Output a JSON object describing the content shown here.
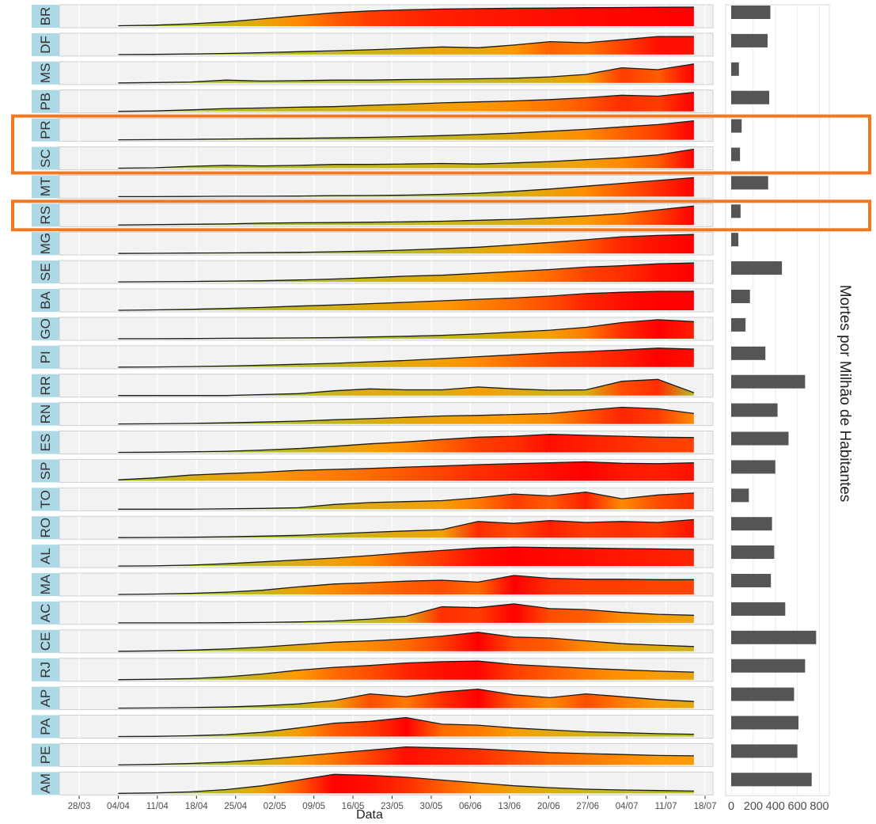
{
  "chart_data": [
    {
      "type": "area",
      "xlabel": "Data",
      "ylabel": "",
      "x_ticks": [
        "28/03",
        "04/04",
        "11/04",
        "18/04",
        "25/04",
        "02/05",
        "09/05",
        "16/05",
        "23/05",
        "30/05",
        "06/06",
        "13/06",
        "20/06",
        "27/06",
        "04/07",
        "11/07",
        "18/07"
      ],
      "x_range": [
        "28/03",
        "18/07"
      ],
      "grid": true,
      "legend": "none",
      "fill_color_scale": [
        "#9acd32",
        "#ff0000"
      ],
      "panel_label_color": "#add8e6",
      "series": [
        {
          "name": "BR",
          "start": "04/04",
          "end": "16/07",
          "values": [
            0.02,
            0.05,
            0.12,
            0.22,
            0.38,
            0.55,
            0.7,
            0.8,
            0.86,
            0.9,
            0.92,
            0.94,
            0.95,
            0.97,
            0.98,
            0.99,
            1.0
          ]
        },
        {
          "name": "DF",
          "start": "04/04",
          "end": "16/07",
          "values": [
            0.0,
            0.01,
            0.03,
            0.06,
            0.1,
            0.15,
            0.2,
            0.25,
            0.32,
            0.4,
            0.36,
            0.5,
            0.68,
            0.62,
            0.78,
            0.95,
            0.95
          ]
        },
        {
          "name": "MS",
          "start": "04/04",
          "end": "16/07",
          "values": [
            0.0,
            0.02,
            0.05,
            0.15,
            0.1,
            0.12,
            0.15,
            0.15,
            0.18,
            0.2,
            0.22,
            0.25,
            0.32,
            0.45,
            0.8,
            0.7,
            1.0
          ]
        },
        {
          "name": "PB",
          "start": "04/04",
          "end": "16/07",
          "values": [
            0.0,
            0.02,
            0.08,
            0.15,
            0.18,
            0.22,
            0.25,
            0.32,
            0.38,
            0.45,
            0.5,
            0.55,
            0.62,
            0.72,
            0.85,
            0.8,
            1.0
          ]
        },
        {
          "name": "PR",
          "start": "04/04",
          "end": "16/07",
          "values": [
            0.0,
            0.01,
            0.02,
            0.04,
            0.06,
            0.08,
            0.1,
            0.13,
            0.17,
            0.22,
            0.28,
            0.35,
            0.45,
            0.55,
            0.68,
            0.8,
            1.0
          ]
        },
        {
          "name": "SC",
          "start": "04/04",
          "end": "16/07",
          "values": [
            0.0,
            0.02,
            0.1,
            0.15,
            0.12,
            0.15,
            0.2,
            0.2,
            0.22,
            0.25,
            0.22,
            0.28,
            0.35,
            0.45,
            0.55,
            0.7,
            1.0
          ]
        },
        {
          "name": "MT",
          "start": "04/04",
          "end": "16/07",
          "values": [
            0.0,
            0.0,
            0.01,
            0.02,
            0.02,
            0.03,
            0.05,
            0.06,
            0.08,
            0.12,
            0.18,
            0.28,
            0.4,
            0.55,
            0.7,
            0.85,
            1.0
          ]
        },
        {
          "name": "RS",
          "start": "04/04",
          "end": "16/07",
          "values": [
            0.0,
            0.02,
            0.04,
            0.06,
            0.1,
            0.12,
            0.13,
            0.15,
            0.17,
            0.2,
            0.25,
            0.3,
            0.38,
            0.48,
            0.6,
            0.8,
            1.0
          ]
        },
        {
          "name": "MG",
          "start": "04/04",
          "end": "16/07",
          "values": [
            0.0,
            0.01,
            0.02,
            0.03,
            0.04,
            0.06,
            0.09,
            0.13,
            0.18,
            0.25,
            0.33,
            0.45,
            0.58,
            0.72,
            0.88,
            0.95,
            1.0
          ]
        },
        {
          "name": "SE",
          "start": "04/04",
          "end": "16/07",
          "values": [
            0.0,
            0.01,
            0.02,
            0.04,
            0.06,
            0.1,
            0.15,
            0.22,
            0.3,
            0.35,
            0.45,
            0.55,
            0.65,
            0.78,
            0.85,
            0.95,
            1.0
          ]
        },
        {
          "name": "BA",
          "start": "04/04",
          "end": "16/07",
          "values": [
            0.0,
            0.02,
            0.05,
            0.1,
            0.15,
            0.22,
            0.28,
            0.35,
            0.42,
            0.5,
            0.58,
            0.65,
            0.75,
            0.88,
            0.95,
            1.0,
            1.0
          ]
        },
        {
          "name": "GO",
          "start": "04/04",
          "end": "16/07",
          "values": [
            0.0,
            0.0,
            0.01,
            0.02,
            0.03,
            0.04,
            0.06,
            0.09,
            0.13,
            0.18,
            0.25,
            0.35,
            0.45,
            0.6,
            0.85,
            1.0,
            0.9
          ]
        },
        {
          "name": "PI",
          "start": "04/04",
          "end": "16/07",
          "values": [
            0.0,
            0.01,
            0.03,
            0.06,
            0.1,
            0.15,
            0.2,
            0.28,
            0.35,
            0.45,
            0.55,
            0.65,
            0.75,
            0.82,
            0.9,
            1.0,
            0.95
          ]
        },
        {
          "name": "RR",
          "start": "04/04",
          "end": "16/07",
          "values": [
            0.0,
            0.0,
            0.0,
            0.0,
            0.05,
            0.1,
            0.25,
            0.35,
            0.3,
            0.3,
            0.45,
            0.35,
            0.28,
            0.3,
            0.75,
            0.85,
            0.15
          ]
        },
        {
          "name": "RN",
          "start": "04/04",
          "end": "16/07",
          "values": [
            0.0,
            0.01,
            0.03,
            0.06,
            0.1,
            0.15,
            0.22,
            0.28,
            0.35,
            0.42,
            0.45,
            0.5,
            0.55,
            0.72,
            0.88,
            0.8,
            0.55
          ]
        },
        {
          "name": "ES",
          "start": "04/04",
          "end": "16/07",
          "values": [
            0.0,
            0.01,
            0.03,
            0.06,
            0.12,
            0.2,
            0.32,
            0.45,
            0.55,
            0.68,
            0.8,
            0.85,
            0.95,
            0.9,
            0.85,
            0.8,
            0.78
          ]
        },
        {
          "name": "SP",
          "start": "04/04",
          "end": "16/07",
          "values": [
            0.05,
            0.15,
            0.3,
            0.38,
            0.45,
            0.55,
            0.6,
            0.65,
            0.72,
            0.78,
            0.85,
            0.9,
            0.95,
            1.0,
            0.92,
            0.9,
            0.95
          ]
        },
        {
          "name": "TO",
          "start": "04/04",
          "end": "16/07",
          "values": [
            0.0,
            0.0,
            0.0,
            0.02,
            0.04,
            0.08,
            0.25,
            0.35,
            0.4,
            0.45,
            0.6,
            0.8,
            0.7,
            0.9,
            0.55,
            0.75,
            0.85
          ]
        },
        {
          "name": "RO",
          "start": "04/04",
          "end": "16/07",
          "values": [
            0.0,
            0.01,
            0.02,
            0.04,
            0.08,
            0.12,
            0.2,
            0.28,
            0.35,
            0.42,
            0.85,
            0.75,
            0.9,
            0.8,
            0.85,
            0.8,
            0.95
          ]
        },
        {
          "name": "AL",
          "start": "04/04",
          "end": "16/07",
          "values": [
            0.0,
            0.01,
            0.05,
            0.12,
            0.22,
            0.32,
            0.42,
            0.55,
            0.7,
            0.82,
            0.95,
            1.0,
            0.97,
            0.95,
            0.92,
            0.9,
            0.88
          ]
        },
        {
          "name": "MA",
          "start": "04/04",
          "end": "16/07",
          "values": [
            0.0,
            0.02,
            0.06,
            0.12,
            0.22,
            0.4,
            0.55,
            0.62,
            0.7,
            0.75,
            0.65,
            1.0,
            0.85,
            0.8,
            0.8,
            0.78,
            0.78
          ]
        },
        {
          "name": "AC",
          "start": "04/04",
          "end": "16/07",
          "values": [
            0.0,
            0.0,
            0.0,
            0.01,
            0.02,
            0.05,
            0.1,
            0.2,
            0.35,
            0.85,
            0.8,
            1.0,
            0.75,
            0.7,
            0.55,
            0.45,
            0.4
          ]
        },
        {
          "name": "CE",
          "start": "04/04",
          "end": "16/07",
          "values": [
            0.0,
            0.02,
            0.06,
            0.12,
            0.22,
            0.35,
            0.48,
            0.55,
            0.65,
            0.8,
            1.0,
            0.75,
            0.7,
            0.55,
            0.4,
            0.32,
            0.25
          ]
        },
        {
          "name": "RJ",
          "start": "04/04",
          "end": "16/07",
          "values": [
            0.0,
            0.02,
            0.06,
            0.15,
            0.3,
            0.5,
            0.65,
            0.75,
            0.88,
            0.95,
            0.98,
            0.8,
            0.7,
            0.6,
            0.52,
            0.45,
            0.4
          ]
        },
        {
          "name": "AP",
          "start": "04/04",
          "end": "16/07",
          "values": [
            0.0,
            0.01,
            0.03,
            0.06,
            0.12,
            0.22,
            0.4,
            0.75,
            0.6,
            0.85,
            1.0,
            0.7,
            0.55,
            0.75,
            0.6,
            0.45,
            0.35
          ]
        },
        {
          "name": "PA",
          "start": "04/04",
          "end": "16/07",
          "values": [
            0.0,
            0.01,
            0.04,
            0.1,
            0.22,
            0.45,
            0.7,
            0.8,
            1.0,
            0.65,
            0.6,
            0.45,
            0.35,
            0.25,
            0.2,
            0.15,
            0.12
          ]
        },
        {
          "name": "PE",
          "start": "04/04",
          "end": "16/07",
          "values": [
            0.0,
            0.03,
            0.08,
            0.15,
            0.28,
            0.45,
            0.62,
            0.78,
            0.95,
            0.9,
            0.85,
            0.75,
            0.65,
            0.6,
            0.55,
            0.5,
            0.48
          ]
        },
        {
          "name": "AM",
          "start": "04/04",
          "end": "16/07",
          "values": [
            0.0,
            0.02,
            0.08,
            0.2,
            0.4,
            0.7,
            1.0,
            0.95,
            0.85,
            0.7,
            0.55,
            0.4,
            0.3,
            0.22,
            0.18,
            0.15,
            0.12
          ]
        }
      ],
      "highlighted_groups": [
        [
          "PR",
          "SC"
        ],
        [
          "RS"
        ]
      ],
      "highlight_color": "#f07820"
    },
    {
      "type": "bar",
      "orientation": "horizontal",
      "ylabel": "Mortes por Milhão de Habitantes",
      "x_ticks": [
        "0",
        "200",
        "400",
        "600",
        "800"
      ],
      "xlim": [
        0,
        900
      ],
      "grid": true,
      "bar_color": "#555555",
      "categories": [
        "BR",
        "DF",
        "MS",
        "PB",
        "PR",
        "SC",
        "MT",
        "RS",
        "MG",
        "SE",
        "BA",
        "GO",
        "PI",
        "RR",
        "RN",
        "ES",
        "SP",
        "TO",
        "RO",
        "AL",
        "MA",
        "AC",
        "CE",
        "RJ",
        "AP",
        "PA",
        "PE",
        "AM"
      ],
      "values": [
        355,
        330,
        70,
        345,
        95,
        80,
        335,
        85,
        65,
        460,
        170,
        130,
        310,
        670,
        420,
        520,
        400,
        160,
        370,
        390,
        360,
        490,
        770,
        670,
        570,
        610,
        600,
        730
      ]
    }
  ]
}
